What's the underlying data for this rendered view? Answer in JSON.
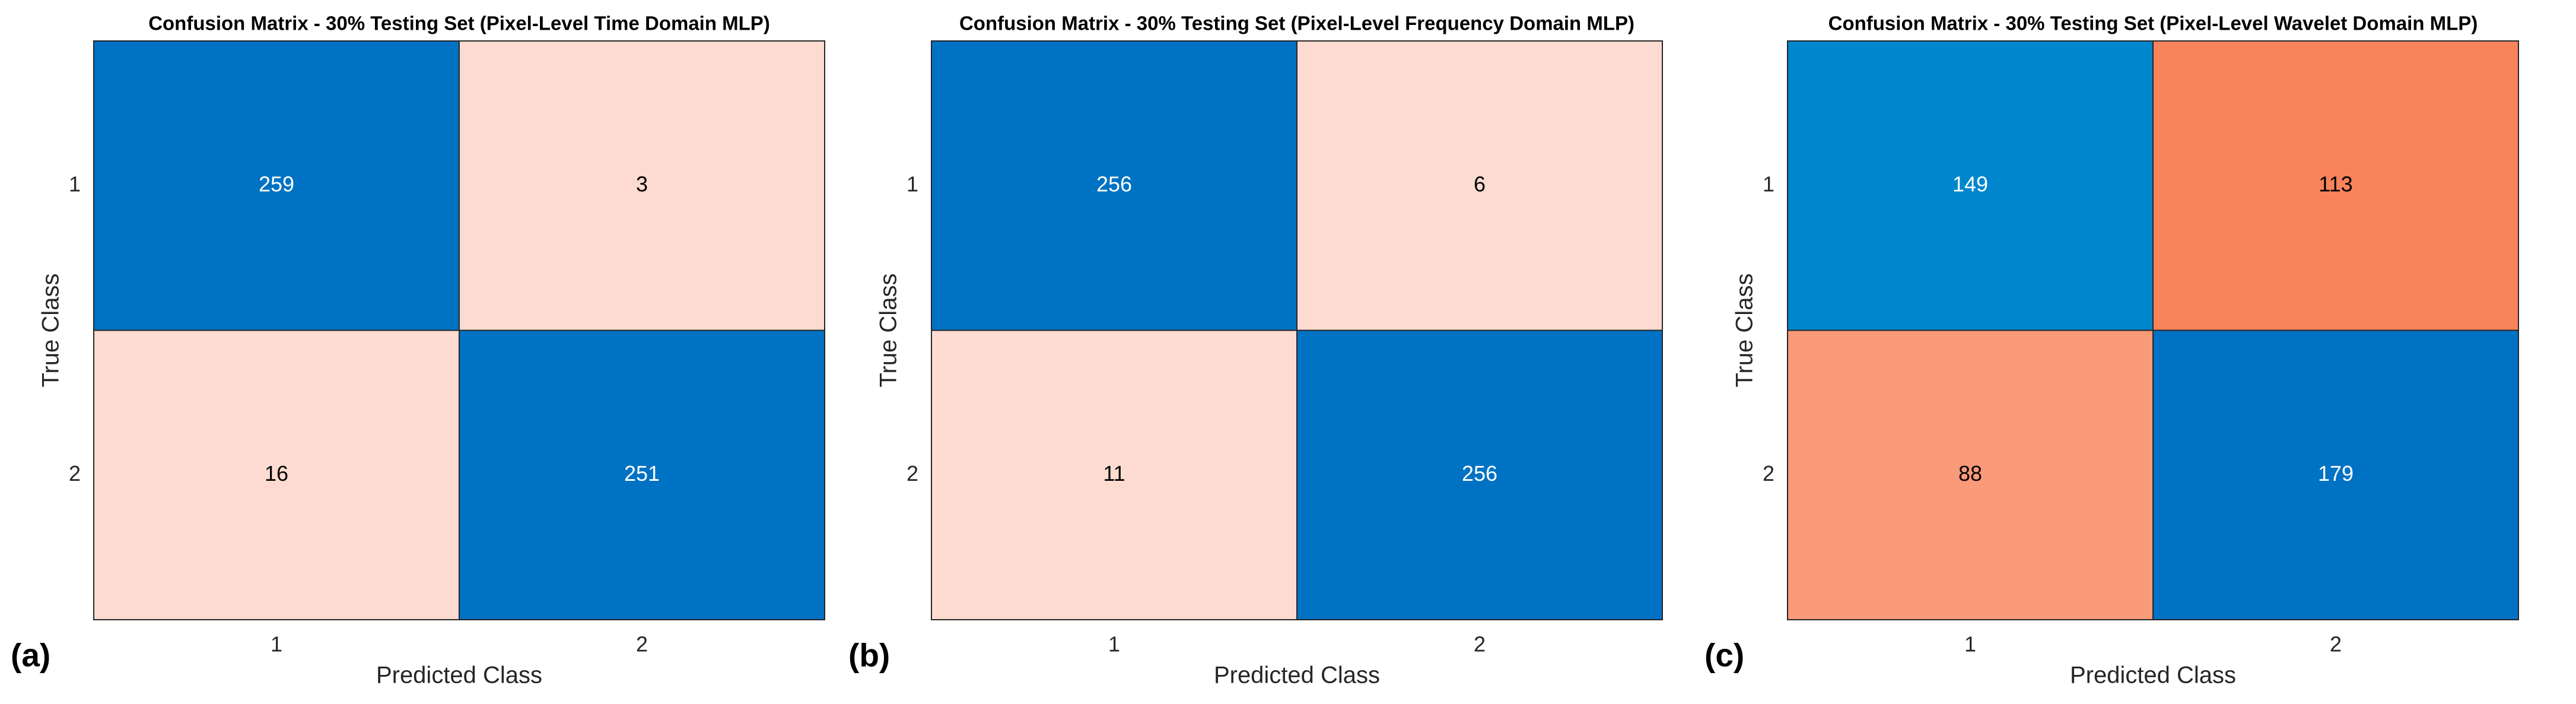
{
  "chart_data": [
    {
      "type": "heatmap",
      "title": "Confusion Matrix - 30% Testing Set (Pixel-Level Time Domain MLP)",
      "panel_label": "(a)",
      "xlabel": "Predicted Class",
      "ylabel": "True Class",
      "x_categories": [
        "1",
        "2"
      ],
      "y_categories": [
        "1",
        "2"
      ],
      "values": [
        [
          259,
          3
        ],
        [
          16,
          251
        ]
      ],
      "colors": [
        [
          "#0072c3",
          "#fddbd0"
        ],
        [
          "#fddbd0",
          "#0072c3"
        ]
      ]
    },
    {
      "type": "heatmap",
      "title": "Confusion Matrix - 30% Testing Set (Pixel-Level Frequency Domain MLP)",
      "panel_label": "(b)",
      "xlabel": "Predicted Class",
      "ylabel": "True Class",
      "x_categories": [
        "1",
        "2"
      ],
      "y_categories": [
        "1",
        "2"
      ],
      "values": [
        [
          256,
          6
        ],
        [
          11,
          256
        ]
      ],
      "colors": [
        [
          "#0072c3",
          "#fddbd0"
        ],
        [
          "#fddbd0",
          "#0072c3"
        ]
      ]
    },
    {
      "type": "heatmap",
      "title": "Confusion Matrix - 30% Testing Set (Pixel-Level Wavelet Domain MLP)",
      "panel_label": "(c)",
      "xlabel": "Predicted Class",
      "ylabel": "True Class",
      "x_categories": [
        "1",
        "2"
      ],
      "y_categories": [
        "1",
        "2"
      ],
      "values": [
        [
          149,
          113
        ],
        [
          88,
          179
        ]
      ],
      "colors": [
        [
          "#0086cc",
          "#f9845b"
        ],
        [
          "#f99a78",
          "#0072c3"
        ]
      ]
    }
  ]
}
